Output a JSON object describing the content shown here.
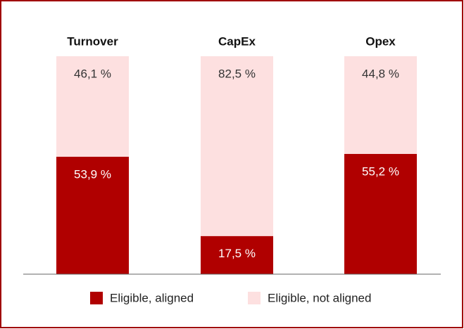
{
  "chart_data": {
    "type": "stacked_bar",
    "categories": [
      "Turnover",
      "CapEx",
      "Opex"
    ],
    "ylim": [
      0,
      100
    ],
    "series": [
      {
        "name": "Eligible, aligned",
        "color": "#b00000",
        "values": [
          53.9,
          17.5,
          55.2
        ],
        "value_labels": [
          "53,9 %",
          "17,5 %",
          "55,2 %"
        ]
      },
      {
        "name": "Eligible, not aligned",
        "color": "#fde0e0",
        "values": [
          46.1,
          82.5,
          44.8
        ],
        "value_labels": [
          "46,1 %",
          "82,5 %",
          "44,8 %"
        ]
      }
    ],
    "legend": "bottom"
  }
}
